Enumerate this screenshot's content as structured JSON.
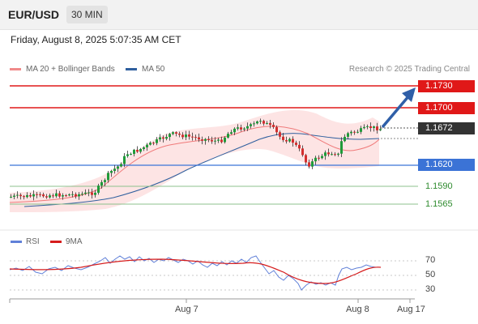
{
  "header": {
    "symbol": "EUR/USD",
    "interval": "30 MIN"
  },
  "datetime": "Friday, August 8, 2025 5:07:35 AM CET",
  "legend": {
    "ma20": "MA 20 + Bollinger Bands",
    "ma50": "MA 50",
    "ma20_color": "#f08a8a",
    "ma50_color": "#2f5f9e"
  },
  "copyright": "Research © 2025 Trading Central",
  "levels": {
    "resistance_2": "1.1730",
    "resistance_1": "1.1700",
    "last_price": "1.1672",
    "pivot": "1.1620",
    "support_1": "1.1590",
    "support_2": "1.1565"
  },
  "colors": {
    "resistance": "#e01818",
    "pivot": "#3b73d6",
    "support": "#2e8b2e",
    "last": "#333333",
    "bull": "#1f9b3a",
    "bear": "#d32f2f"
  },
  "rsi": {
    "legend_rsi": "RSI",
    "legend_ma": "9MA",
    "rsi_color": "#6080d8",
    "ma_color": "#d61c1c",
    "axis": [
      "70",
      "50",
      "30"
    ]
  },
  "x_axis": [
    "Aug 7",
    "Aug 8",
    "Aug 17"
  ]
}
